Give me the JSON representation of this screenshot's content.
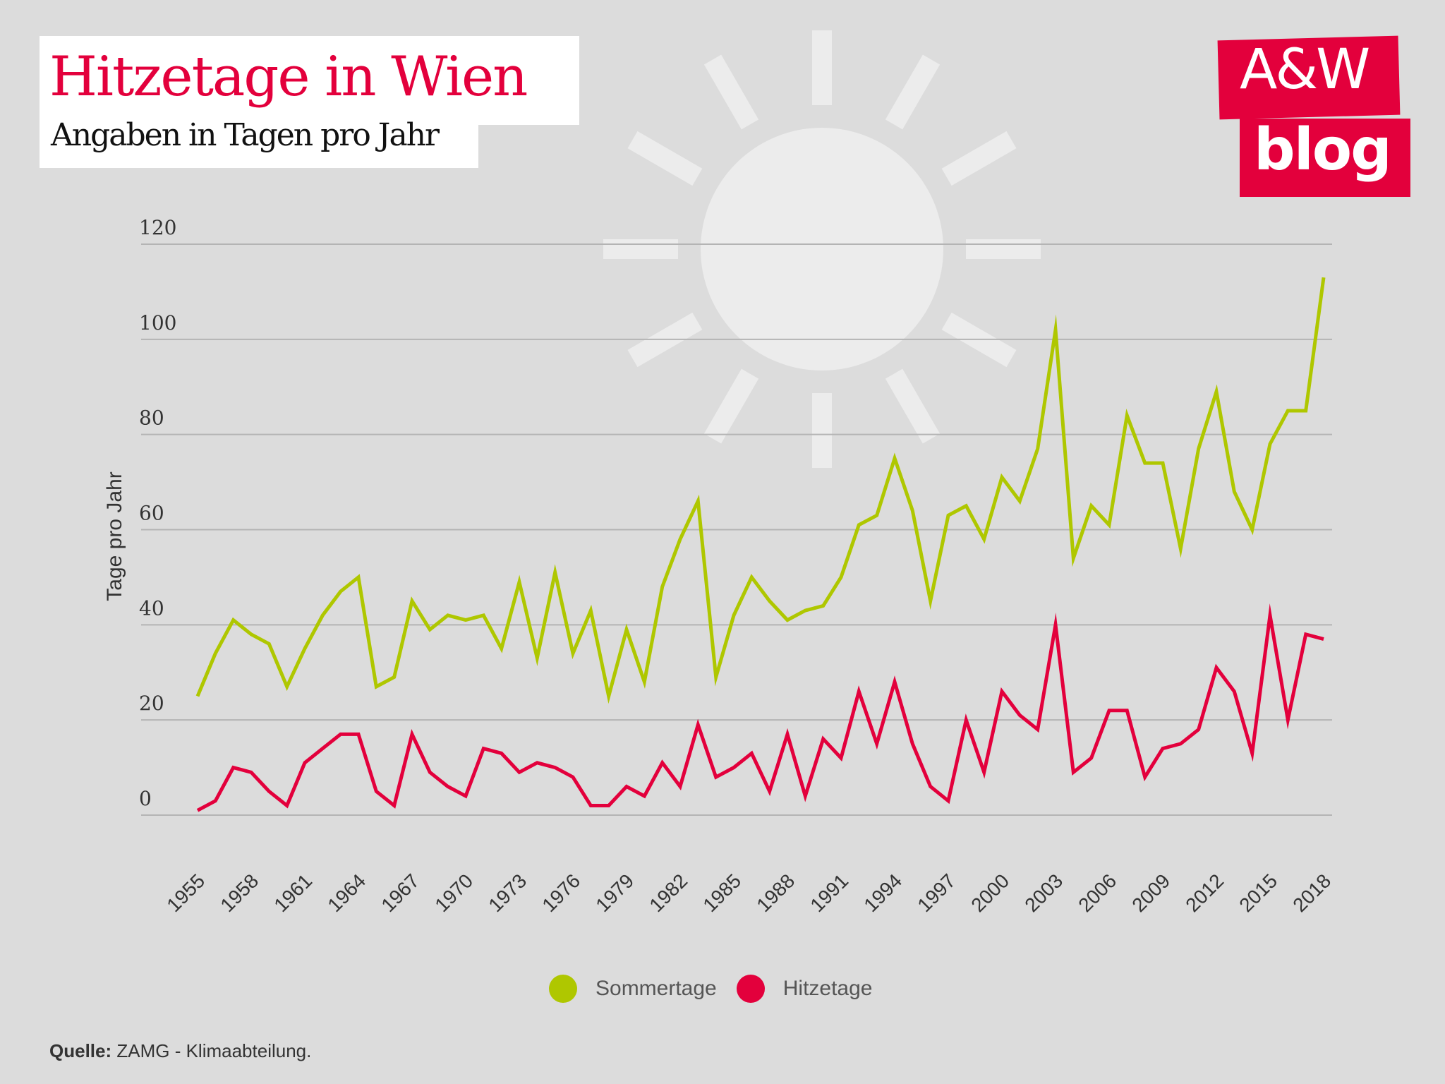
{
  "header": {
    "title": "Hitzetage in Wien",
    "subtitle": "Angaben in Tagen pro Jahr"
  },
  "logo": {
    "line1": "A&W",
    "line2": "blog",
    "color": "#e3003c"
  },
  "decoration": {
    "background_icon": "sun-icon"
  },
  "legend": [
    {
      "label": "Sommertage",
      "color": "#afc700"
    },
    {
      "label": "Hitzetage",
      "color": "#e3003c"
    }
  ],
  "source": {
    "label": "Quelle:",
    "text": " ZAMG - Klimaabteilung."
  },
  "chart_data": {
    "type": "line",
    "title": "Hitzetage in Wien",
    "subtitle": "Angaben in Tagen pro Jahr",
    "xlabel": "",
    "ylabel": "Tage pro Jahr",
    "ylim": [
      0,
      120
    ],
    "yticks": [
      0,
      20,
      40,
      60,
      80,
      100,
      120
    ],
    "grid": true,
    "legend_position": "bottom-center",
    "x": [
      1955,
      1956,
      1957,
      1958,
      1959,
      1960,
      1961,
      1962,
      1963,
      1964,
      1965,
      1966,
      1967,
      1968,
      1969,
      1970,
      1971,
      1972,
      1973,
      1974,
      1975,
      1976,
      1977,
      1978,
      1979,
      1980,
      1981,
      1982,
      1983,
      1984,
      1985,
      1986,
      1987,
      1988,
      1989,
      1990,
      1991,
      1992,
      1993,
      1994,
      1995,
      1996,
      1997,
      1998,
      1999,
      2000,
      2001,
      2002,
      2003,
      2004,
      2005,
      2006,
      2007,
      2008,
      2009,
      2010,
      2011,
      2012,
      2013,
      2014,
      2015,
      2016,
      2017,
      2018
    ],
    "xtick_labels": [
      "1955",
      "1958",
      "1961",
      "1964",
      "1967",
      "1970",
      "1973",
      "1976",
      "1979",
      "1982",
      "1985",
      "1988",
      "1991",
      "1994",
      "1997",
      "2000",
      "2003",
      "2006",
      "2009",
      "2012",
      "2015",
      "2018"
    ],
    "series": [
      {
        "name": "Sommertage",
        "color": "#afc700",
        "values": [
          25,
          34,
          41,
          38,
          36,
          27,
          35,
          42,
          47,
          50,
          27,
          29,
          45,
          39,
          42,
          41,
          42,
          35,
          49,
          33,
          51,
          34,
          43,
          25,
          39,
          28,
          48,
          58,
          66,
          29,
          42,
          50,
          45,
          41,
          43,
          44,
          50,
          61,
          63,
          75,
          64,
          45,
          63,
          65,
          58,
          71,
          66,
          77,
          102,
          54,
          65,
          61,
          84,
          74,
          74,
          56,
          77,
          89,
          68,
          60,
          78,
          85,
          85,
          113
        ]
      },
      {
        "name": "Hitzetage",
        "color": "#e3003c",
        "values": [
          1,
          3,
          10,
          9,
          5,
          2,
          11,
          14,
          17,
          17,
          5,
          2,
          17,
          9,
          6,
          4,
          14,
          13,
          9,
          11,
          10,
          8,
          2,
          2,
          6,
          4,
          11,
          6,
          19,
          8,
          10,
          13,
          5,
          17,
          4,
          16,
          12,
          26,
          15,
          28,
          15,
          6,
          3,
          20,
          9,
          26,
          21,
          18,
          40,
          9,
          12,
          22,
          22,
          8,
          14,
          15,
          18,
          31,
          26,
          13,
          42,
          20,
          38,
          37
        ]
      }
    ]
  }
}
